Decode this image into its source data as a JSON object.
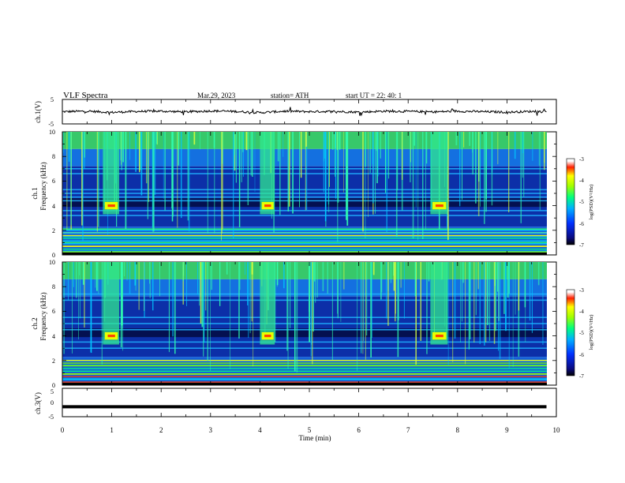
{
  "header": {
    "title": "VLF  Spectra",
    "date": "Mar.29, 2023",
    "station": "station= ATH",
    "start": "start  UT  =    22: 40: 1"
  },
  "colors": {
    "background": "#ffffff",
    "trace": "#000000",
    "spectrogram_low": "#0a1a8c",
    "spectrogram_high": "#ff0000"
  },
  "chart_data": [
    {
      "type": "line",
      "panel": "ch1-waveform",
      "ylabel": "ch.1(V)",
      "ylim": [
        -5,
        5
      ],
      "yticks": [
        "5",
        "-5"
      ],
      "x": [
        0,
        0.5,
        1,
        1.5,
        2,
        2.5,
        3,
        3.5,
        4,
        4.5,
        5,
        5.5,
        6,
        6.5,
        7,
        7.5,
        8,
        8.5,
        9,
        9.5,
        9.8
      ],
      "values": [
        0,
        0.2,
        -0.3,
        0.1,
        0.2,
        -0.1,
        0.3,
        0.1,
        -0.4,
        0.2,
        0,
        0.1,
        -0.2,
        0.2,
        0.1,
        -0.1,
        0.2,
        0,
        -0.2,
        0.1,
        0
      ],
      "xlim": [
        0,
        10
      ]
    },
    {
      "type": "heatmap",
      "panel": "ch1-spectrogram",
      "ylabel_top": "ch.1",
      "ylabel": "Frequency  (kHz)",
      "ylim": [
        0,
        10
      ],
      "yticks": [
        "0",
        "2",
        "4",
        "6",
        "8",
        "10"
      ],
      "xlim": [
        0,
        10
      ],
      "time_extent_min": 9.8,
      "colorbar_label": "log(PSD)(V²/Hz)",
      "colorbar_range": [
        -7,
        -3
      ],
      "colorbar_ticks": [
        "-3",
        "-4",
        "-5",
        "-6",
        "-7"
      ],
      "bursts_min": [
        [
          0.82,
          1.15
        ],
        [
          4.0,
          4.3
        ],
        [
          7.45,
          7.8
        ]
      ],
      "bands_khz": [
        0.3,
        0.7,
        1.0,
        1.5,
        1.8,
        2.1,
        3.2,
        3.6,
        4.4,
        4.7,
        5.0,
        5.3,
        6.6,
        7.0
      ]
    },
    {
      "type": "heatmap",
      "panel": "ch2-spectrogram",
      "ylabel_top": "ch.2",
      "ylabel": "Frequency  (kHz)",
      "ylim": [
        0,
        10
      ],
      "yticks": [
        "0",
        "2",
        "4",
        "6",
        "8",
        "10"
      ],
      "xlim": [
        0,
        10
      ],
      "time_extent_min": 9.8,
      "colorbar_label": "log(PSD)(V²/Hz)",
      "colorbar_range": [
        -7,
        -3
      ],
      "colorbar_ticks": [
        "-3",
        "-4",
        "-5",
        "-6",
        "-7"
      ],
      "bursts_min": [
        [
          0.82,
          1.15
        ],
        [
          4.0,
          4.3
        ],
        [
          7.45,
          7.8
        ]
      ],
      "bands_khz": [
        0.5,
        0.9,
        1.6,
        2.0,
        3.0,
        3.5,
        4.5,
        5.0,
        5.5,
        6.9,
        7.4
      ]
    },
    {
      "type": "line",
      "panel": "ch3-waveform",
      "ylabel": "ch.3(V)",
      "ylim": [
        -5,
        5
      ],
      "yticks": [
        "5",
        "0",
        "-5"
      ],
      "x": [
        0,
        9.8
      ],
      "values": [
        -1.5,
        -1.5
      ],
      "xlim": [
        0,
        10
      ],
      "xlabel": "Time  (min)",
      "xticks": [
        "0",
        "1",
        "2",
        "3",
        "4",
        "5",
        "6",
        "7",
        "8",
        "9",
        "10"
      ]
    }
  ]
}
